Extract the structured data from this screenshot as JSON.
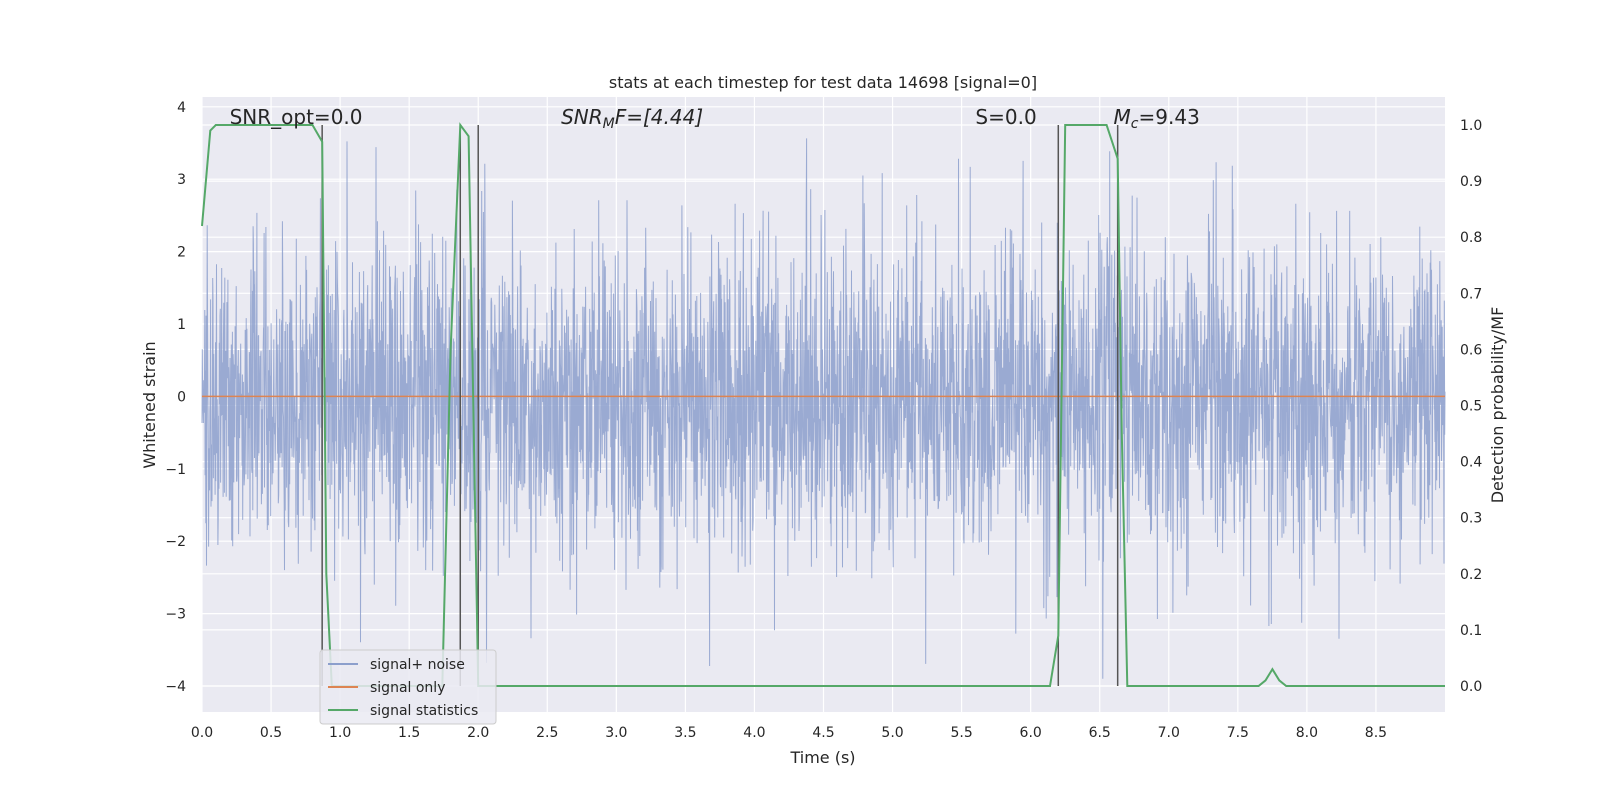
{
  "chart_data": {
    "type": "line",
    "title": "stats at each timestep for test data 14698 [signal=0]",
    "xlabel": "Time (s)",
    "ylabel": "Whitened strain",
    "y2label": "Detection probability/MF",
    "xlim": [
      0.0,
      9.0
    ],
    "ylim": [
      -4.4,
      4.1
    ],
    "y2lim": [
      -0.05,
      1.05
    ],
    "xticks": [
      "0.0",
      "0.5",
      "1.0",
      "1.5",
      "2.0",
      "2.5",
      "3.0",
      "3.5",
      "4.0",
      "4.5",
      "5.0",
      "5.5",
      "6.0",
      "6.5",
      "7.0",
      "7.5",
      "8.0",
      "8.5"
    ],
    "xtick_values": [
      0,
      0.5,
      1,
      1.5,
      2,
      2.5,
      3,
      3.5,
      4,
      4.5,
      5,
      5.5,
      6,
      6.5,
      7,
      7.5,
      8,
      8.5
    ],
    "yticks": [
      "−4",
      "−3",
      "−2",
      "−1",
      "0",
      "1",
      "2",
      "3",
      "4"
    ],
    "ytick_values": [
      -4,
      -3,
      -2,
      -1,
      0,
      1,
      2,
      3,
      4
    ],
    "y2ticks": [
      "0.0",
      "0.1",
      "0.2",
      "0.3",
      "0.4",
      "0.5",
      "0.6",
      "0.7",
      "0.8",
      "0.9",
      "1.0"
    ],
    "y2tick_values": [
      0,
      0.1,
      0.2,
      0.3,
      0.4,
      0.5,
      0.6,
      0.7,
      0.8,
      0.9,
      1.0
    ],
    "grid": true,
    "legend_position": "bottom-left",
    "annotations": [
      {
        "text": "SNR_opt=0.0",
        "x": 0.2
      },
      {
        "text": "SNR_MF=[4.44]",
        "x": 2.6
      },
      {
        "text": "S=0.0",
        "x": 5.6
      },
      {
        "text": "M_c=9.43",
        "x": 6.6
      }
    ],
    "vertical_markers": [
      0.87,
      1.87,
      2.0,
      6.2,
      6.63
    ],
    "series": [
      {
        "name": "signal+ noise",
        "color": "#8c9fcc",
        "kind": "noise",
        "sampling_rate_hz": 400,
        "typical_range": [
          -2.6,
          3.6
        ],
        "values": []
      },
      {
        "name": "signal only",
        "color": "#dd8452",
        "x": [
          0.0,
          9.0
        ],
        "values": [
          0.0,
          0.0
        ]
      },
      {
        "name": "signal statistics",
        "color": "#55a868",
        "axis": "right",
        "x": [
          0.0,
          0.06,
          0.1,
          0.15,
          0.2,
          0.3,
          0.4,
          0.5,
          0.6,
          0.7,
          0.8,
          0.87,
          0.9,
          0.94,
          1.0,
          1.5,
          1.74,
          1.8,
          1.87,
          1.93,
          2.0,
          2.03,
          2.06,
          2.1,
          2.5,
          3.0,
          3.5,
          4.0,
          4.5,
          5.0,
          5.5,
          6.0,
          6.14,
          6.2,
          6.25,
          6.3,
          6.4,
          6.5,
          6.55,
          6.63,
          6.66,
          6.7,
          6.8,
          7.0,
          7.5,
          7.65,
          7.7,
          7.75,
          7.8,
          7.85,
          8.0,
          8.5,
          9.0
        ],
        "values": [
          0.82,
          0.99,
          1.0,
          1.0,
          1.0,
          1.0,
          1.0,
          1.0,
          1.0,
          1.0,
          1.0,
          0.97,
          0.2,
          0.0,
          0.0,
          0.0,
          0.0,
          0.6,
          1.0,
          0.98,
          0.0,
          0.0,
          0.0,
          0.0,
          0.0,
          0.0,
          0.0,
          0.0,
          0.0,
          0.0,
          0.0,
          0.0,
          0.0,
          0.09,
          1.0,
          1.0,
          1.0,
          1.0,
          1.0,
          0.94,
          0.45,
          0.0,
          0.0,
          0.0,
          0.0,
          0.0,
          0.01,
          0.03,
          0.01,
          0.0,
          0.0,
          0.0,
          0.0
        ]
      }
    ]
  }
}
